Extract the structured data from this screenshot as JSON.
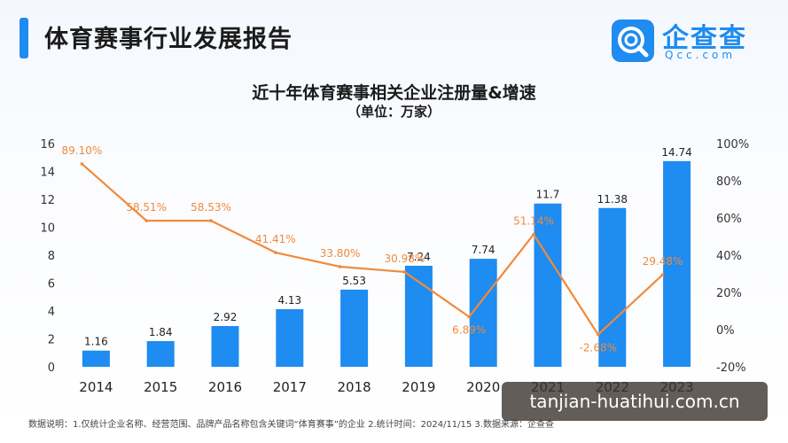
{
  "header": {
    "title": "体育赛事行业发展报告"
  },
  "logo": {
    "name": "企查查",
    "domain": "Qcc.com",
    "icon": "qcc-logo-icon"
  },
  "chart_data": {
    "type": "bar",
    "title": "近十年体育赛事相关企业注册量&增速",
    "subtitle": "（单位：万家）",
    "categories": [
      "2014",
      "2015",
      "2016",
      "2017",
      "2018",
      "2019",
      "2020",
      "2021",
      "2022",
      "2023"
    ],
    "series": [
      {
        "type": "bar",
        "axis": "left",
        "color": "#1e8cf0",
        "values": [
          1.16,
          1.84,
          2.92,
          4.13,
          5.53,
          7.24,
          7.74,
          11.7,
          11.38,
          14.74
        ],
        "labels": [
          "1.16",
          "1.84",
          "2.92",
          "4.13",
          "5.53",
          "7.24",
          "7.74",
          "11.7",
          "11.38",
          "14.74"
        ]
      },
      {
        "type": "line",
        "axis": "right",
        "color": "#f08a3c",
        "values": [
          89.1,
          58.51,
          58.53,
          41.41,
          33.8,
          30.98,
          6.89,
          51.14,
          -2.68,
          29.48
        ],
        "labels": [
          "89.10%",
          "58.51%",
          "58.53%",
          "41.41%",
          "33.80%",
          "30.98%",
          "6.89%",
          "51.14%",
          "-2.68%",
          "29.48%"
        ]
      }
    ],
    "y_left": {
      "min": 0,
      "max": 16,
      "ticks": [
        "0",
        "2",
        "4",
        "6",
        "8",
        "10",
        "12",
        "14",
        "16"
      ]
    },
    "y_right": {
      "min": -20,
      "max": 100,
      "ticks": [
        "-20%",
        "0%",
        "20%",
        "40%",
        "60%",
        "80%",
        "100%"
      ]
    },
    "grid": false
  },
  "footnote": "数据说明：1.仅统计企业名称、经营范围、品牌产品名称包含关键词“体育赛事”的企业   2.统计时间：2024/11/15   3.数据来源：企查查",
  "watermark": "tanjian-huatihui.com.cn"
}
